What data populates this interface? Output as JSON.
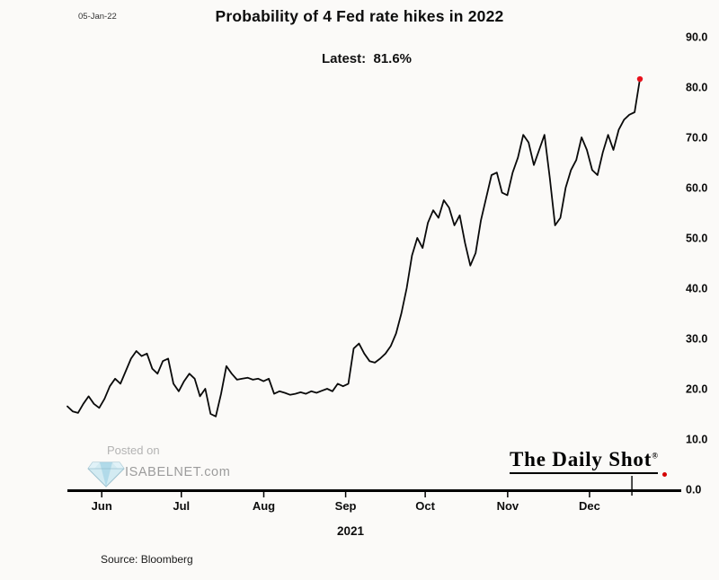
{
  "meta": {
    "date_label": "05-Jan-22"
  },
  "header": {
    "title": "Probability of 4 Fed rate hikes in 2022",
    "latest_label": "Latest:  81.6%"
  },
  "watermark": {
    "posted_on": "Posted on",
    "site": "ISABELNET.com"
  },
  "branding": {
    "daily_shot": "The Daily Shot",
    "registered": "®"
  },
  "footer": {
    "source": "Source: Bloomberg"
  },
  "chart_data": {
    "type": "line",
    "title": "Probability of 4 Fed rate hikes in 2022",
    "latest_value": 81.6,
    "xlabel": "2021",
    "ylabel": "",
    "ylim": [
      0,
      90
    ],
    "y_axis_side": "right",
    "grid": false,
    "line_color": "#0a0a0a",
    "marker_color": "#e8111c",
    "end_marker": true,
    "y_ticks": [
      0,
      10,
      20,
      30,
      40,
      50,
      60,
      70,
      80,
      90
    ],
    "x_ticks": [
      {
        "label": "Jun",
        "f": 0.06
      },
      {
        "label": "Jul",
        "f": 0.199
      },
      {
        "label": "Aug",
        "f": 0.343
      },
      {
        "label": "Sep",
        "f": 0.486
      },
      {
        "label": "Oct",
        "f": 0.625
      },
      {
        "label": "Nov",
        "f": 0.769
      },
      {
        "label": "Dec",
        "f": 0.912
      },
      {
        "label": "",
        "f": 0.986
      }
    ],
    "series": [
      {
        "name": "Probability of 4 Fed rate hikes in 2022 (%)",
        "values": [
          16.5,
          15.5,
          15.2,
          17.0,
          18.5,
          17.0,
          16.2,
          18.0,
          20.5,
          22.0,
          21.0,
          23.5,
          26.0,
          27.5,
          26.5,
          27.0,
          24.0,
          23.0,
          25.5,
          26.0,
          21.0,
          19.5,
          21.5,
          23.0,
          22.0,
          18.5,
          20.0,
          15.0,
          14.5,
          19.0,
          24.5,
          23.0,
          21.8,
          22.0,
          22.2,
          21.8,
          22.0,
          21.5,
          22.0,
          19.0,
          19.5,
          19.2,
          18.8,
          19.0,
          19.3,
          19.0,
          19.5,
          19.2,
          19.6,
          20.0,
          19.5,
          21.0,
          20.5,
          21.0,
          28.0,
          29.0,
          27.0,
          25.5,
          25.2,
          26.0,
          27.0,
          28.5,
          31.0,
          35.0,
          40.0,
          46.5,
          50.0,
          48.0,
          53.0,
          55.5,
          54.0,
          57.5,
          56.0,
          52.5,
          54.5,
          49.0,
          44.5,
          47.0,
          53.5,
          58.0,
          62.5,
          63.0,
          59.0,
          58.5,
          63.0,
          66.0,
          70.5,
          69.0,
          64.5,
          67.5,
          70.5,
          62.0,
          52.5,
          54.0,
          60.0,
          63.5,
          65.5,
          70.0,
          67.5,
          63.5,
          62.5,
          67.0,
          70.5,
          67.5,
          71.5,
          73.5,
          74.5,
          75.0,
          81.6
        ]
      }
    ]
  }
}
